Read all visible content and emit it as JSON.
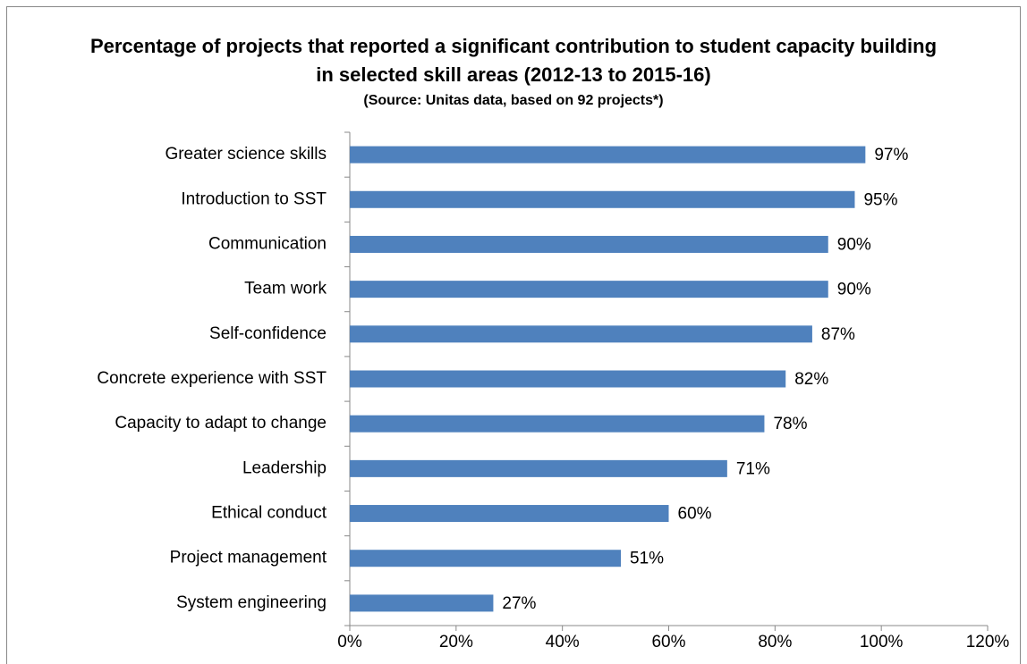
{
  "chart_data": {
    "type": "bar",
    "title": "Percentage of projects that reported a significant contribution to student capacity building in selected skill areas (2012-13 to 2015-16)",
    "subtitle": "(Source: Unitas data, based on 92 projects*)",
    "categories": [
      "Greater science skills",
      "Introduction to SST",
      "Communication",
      "Team work",
      "Self-confidence",
      "Concrete experience with SST",
      "Capacity to adapt to change",
      "Leadership",
      "Ethical conduct",
      "Project management",
      "System engineering"
    ],
    "values": [
      97,
      95,
      90,
      90,
      87,
      82,
      78,
      71,
      60,
      51,
      27
    ],
    "value_labels": [
      "97%",
      "95%",
      "90%",
      "90%",
      "87%",
      "82%",
      "78%",
      "71%",
      "60%",
      "51%",
      "27%"
    ],
    "color": "#4f81bd",
    "xlim": [
      0,
      120
    ],
    "xticks": [
      {
        "value": 0,
        "label": "0%"
      },
      {
        "value": 20,
        "label": "20%"
      },
      {
        "value": 40,
        "label": "40%"
      },
      {
        "value": 60,
        "label": "60%"
      },
      {
        "value": 80,
        "label": "80%"
      },
      {
        "value": 100,
        "label": "100%"
      },
      {
        "value": 120,
        "label": "120%"
      }
    ],
    "grid": false
  }
}
